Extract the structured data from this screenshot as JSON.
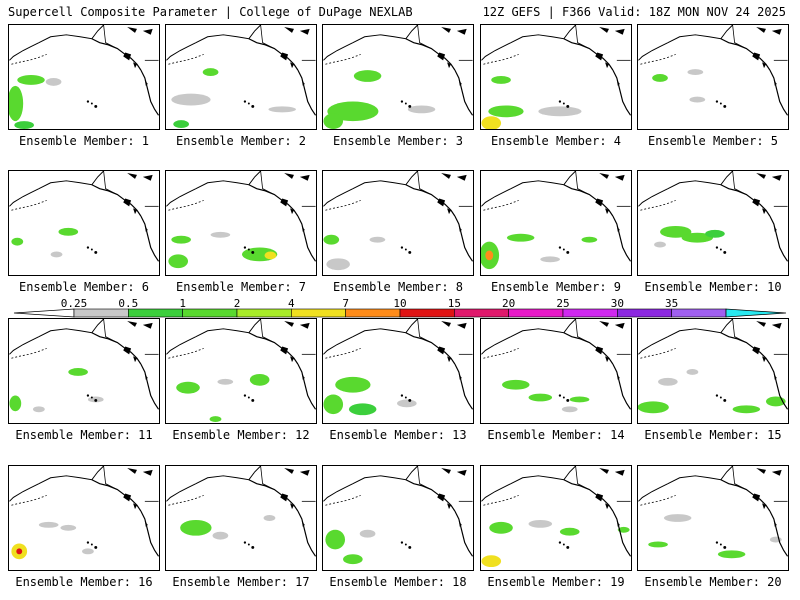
{
  "header": {
    "left": "Supercell Composite Parameter | College of DuPage NEXLAB",
    "right": "12Z GEFS | F366 Valid: 18Z MON NOV 24 2025"
  },
  "members": [
    {
      "label": "Ensemble Member: 1",
      "blobs": [
        [
          22,
          80,
          14,
          5,
          "#59d92f"
        ],
        [
          6,
          104,
          8,
          18,
          "#59d92f"
        ],
        [
          45,
          82,
          8,
          4,
          "#c8c8c8"
        ],
        [
          15,
          126,
          10,
          4,
          "#3ccf3c"
        ]
      ]
    },
    {
      "label": "Ensemble Member: 2",
      "blobs": [
        [
          25,
          100,
          20,
          6,
          "#c8c8c8"
        ],
        [
          45,
          72,
          8,
          4,
          "#59d92f"
        ],
        [
          118,
          110,
          14,
          3,
          "#c8c8c8"
        ],
        [
          15,
          125,
          8,
          4,
          "#3ccf3c"
        ]
      ]
    },
    {
      "label": "Ensemble Member: 3",
      "blobs": [
        [
          30,
          112,
          26,
          10,
          "#59d92f"
        ],
        [
          10,
          122,
          10,
          8,
          "#59d92f"
        ],
        [
          45,
          76,
          14,
          6,
          "#59d92f"
        ],
        [
          100,
          110,
          14,
          4,
          "#c8c8c8"
        ]
      ]
    },
    {
      "label": "Ensemble Member: 4",
      "blobs": [
        [
          10,
          124,
          10,
          7,
          "#f0e020"
        ],
        [
          25,
          112,
          18,
          6,
          "#59d92f"
        ],
        [
          80,
          112,
          22,
          5,
          "#c8c8c8"
        ],
        [
          20,
          80,
          10,
          4,
          "#59d92f"
        ]
      ]
    },
    {
      "label": "Ensemble Member: 5",
      "blobs": [
        [
          22,
          78,
          8,
          4,
          "#59d92f"
        ],
        [
          58,
          72,
          8,
          3,
          "#c8c8c8"
        ],
        [
          60,
          100,
          8,
          3,
          "#c8c8c8"
        ]
      ]
    },
    {
      "label": "Ensemble Member: 6",
      "blobs": [
        [
          8,
          242,
          6,
          4,
          "#59d92f"
        ],
        [
          60,
          232,
          10,
          4,
          "#59d92f"
        ],
        [
          48,
          255,
          6,
          3,
          "#c8c8c8"
        ]
      ]
    },
    {
      "label": "Ensemble Member: 7",
      "blobs": [
        [
          95,
          255,
          18,
          7,
          "#59d92f"
        ],
        [
          106,
          256,
          6,
          4,
          "#f0e020"
        ],
        [
          12,
          262,
          10,
          7,
          "#59d92f"
        ],
        [
          15,
          240,
          10,
          4,
          "#59d92f"
        ],
        [
          55,
          235,
          10,
          3,
          "#c8c8c8"
        ]
      ]
    },
    {
      "label": "Ensemble Member: 8",
      "blobs": [
        [
          15,
          265,
          12,
          6,
          "#c8c8c8"
        ],
        [
          8,
          240,
          8,
          5,
          "#59d92f"
        ],
        [
          55,
          240,
          8,
          3,
          "#c8c8c8"
        ]
      ]
    },
    {
      "label": "Ensemble Member: 9",
      "blobs": [
        [
          8,
          256,
          10,
          14,
          "#59d92f"
        ],
        [
          8,
          256,
          4,
          5,
          "#ff8c1a"
        ],
        [
          40,
          238,
          14,
          4,
          "#59d92f"
        ],
        [
          70,
          260,
          10,
          3,
          "#c8c8c8"
        ],
        [
          110,
          240,
          8,
          3,
          "#59d92f"
        ]
      ]
    },
    {
      "label": "Ensemble Member: 10",
      "blobs": [
        [
          38,
          232,
          16,
          6,
          "#59d92f"
        ],
        [
          60,
          238,
          16,
          5,
          "#59d92f"
        ],
        [
          78,
          234,
          10,
          4,
          "#3ccf3c"
        ],
        [
          22,
          245,
          6,
          3,
          "#c8c8c8"
        ]
      ]
    },
    {
      "label": "Ensemble Member: 11",
      "blobs": [
        [
          70,
          372,
          10,
          4,
          "#59d92f"
        ],
        [
          6,
          404,
          6,
          8,
          "#59d92f"
        ],
        [
          88,
          400,
          8,
          3,
          "#c8c8c8"
        ],
        [
          30,
          410,
          6,
          3,
          "#c8c8c8"
        ]
      ]
    },
    {
      "label": "Ensemble Member: 12",
      "blobs": [
        [
          22,
          388,
          12,
          6,
          "#59d92f"
        ],
        [
          60,
          382,
          8,
          3,
          "#c8c8c8"
        ],
        [
          95,
          380,
          10,
          6,
          "#59d92f"
        ],
        [
          50,
          420,
          6,
          3,
          "#59d92f"
        ]
      ]
    },
    {
      "label": "Ensemble Member: 13",
      "blobs": [
        [
          30,
          385,
          18,
          8,
          "#59d92f"
        ],
        [
          10,
          405,
          10,
          10,
          "#59d92f"
        ],
        [
          40,
          410,
          14,
          6,
          "#3ccf3c"
        ],
        [
          85,
          404,
          10,
          4,
          "#c8c8c8"
        ]
      ]
    },
    {
      "label": "Ensemble Member: 14",
      "blobs": [
        [
          35,
          385,
          14,
          5,
          "#59d92f"
        ],
        [
          60,
          398,
          12,
          4,
          "#59d92f"
        ],
        [
          100,
          400,
          10,
          3,
          "#59d92f"
        ],
        [
          90,
          410,
          8,
          3,
          "#c8c8c8"
        ]
      ]
    },
    {
      "label": "Ensemble Member: 15",
      "blobs": [
        [
          15,
          408,
          16,
          6,
          "#59d92f"
        ],
        [
          30,
          382,
          10,
          4,
          "#c8c8c8"
        ],
        [
          55,
          372,
          6,
          3,
          "#c8c8c8"
        ],
        [
          110,
          410,
          14,
          4,
          "#59d92f"
        ],
        [
          140,
          402,
          10,
          5,
          "#59d92f"
        ]
      ]
    },
    {
      "label": "Ensemble Member: 16",
      "blobs": [
        [
          10,
          552,
          8,
          8,
          "#f0e020"
        ],
        [
          10,
          552,
          3,
          3,
          "#e01414"
        ],
        [
          40,
          525,
          10,
          3,
          "#c8c8c8"
        ],
        [
          60,
          528,
          8,
          3,
          "#c8c8c8"
        ],
        [
          80,
          552,
          6,
          3,
          "#c8c8c8"
        ]
      ]
    },
    {
      "label": "Ensemble Member: 17",
      "blobs": [
        [
          30,
          528,
          16,
          8,
          "#59d92f"
        ],
        [
          55,
          536,
          8,
          4,
          "#c8c8c8"
        ],
        [
          105,
          518,
          6,
          3,
          "#c8c8c8"
        ]
      ]
    },
    {
      "label": "Ensemble Member: 18",
      "blobs": [
        [
          12,
          540,
          10,
          10,
          "#59d92f"
        ],
        [
          30,
          560,
          10,
          5,
          "#59d92f"
        ],
        [
          45,
          534,
          8,
          4,
          "#c8c8c8"
        ]
      ]
    },
    {
      "label": "Ensemble Member: 19",
      "blobs": [
        [
          20,
          528,
          12,
          6,
          "#59d92f"
        ],
        [
          10,
          562,
          10,
          6,
          "#f0e020"
        ],
        [
          60,
          524,
          12,
          4,
          "#c8c8c8"
        ],
        [
          90,
          532,
          10,
          4,
          "#59d92f"
        ],
        [
          145,
          530,
          6,
          3,
          "#59d92f"
        ]
      ]
    },
    {
      "label": "Ensemble Member: 20",
      "blobs": [
        [
          40,
          518,
          14,
          4,
          "#c8c8c8"
        ],
        [
          95,
          555,
          14,
          4,
          "#59d92f"
        ],
        [
          20,
          545,
          10,
          3,
          "#59d92f"
        ],
        [
          140,
          540,
          6,
          3,
          "#c8c8c8"
        ]
      ]
    }
  ],
  "colorbar": {
    "ticks": [
      "0.25",
      "0.5",
      "1",
      "2",
      "4",
      "7",
      "10",
      "15",
      "20",
      "25",
      "30",
      "35"
    ],
    "colors": [
      "#c8c8c8",
      "#3ccf3c",
      "#59d92f",
      "#a8ec28",
      "#f0e020",
      "#ff8c1a",
      "#e01414",
      "#e0186c",
      "#e818c8",
      "#d028f0",
      "#8c28e0",
      "#a060f0"
    ],
    "low_color": "#ffffff",
    "high_color": "#28e8f0"
  },
  "icons": {
    "map": "north-pacific-basemap"
  }
}
